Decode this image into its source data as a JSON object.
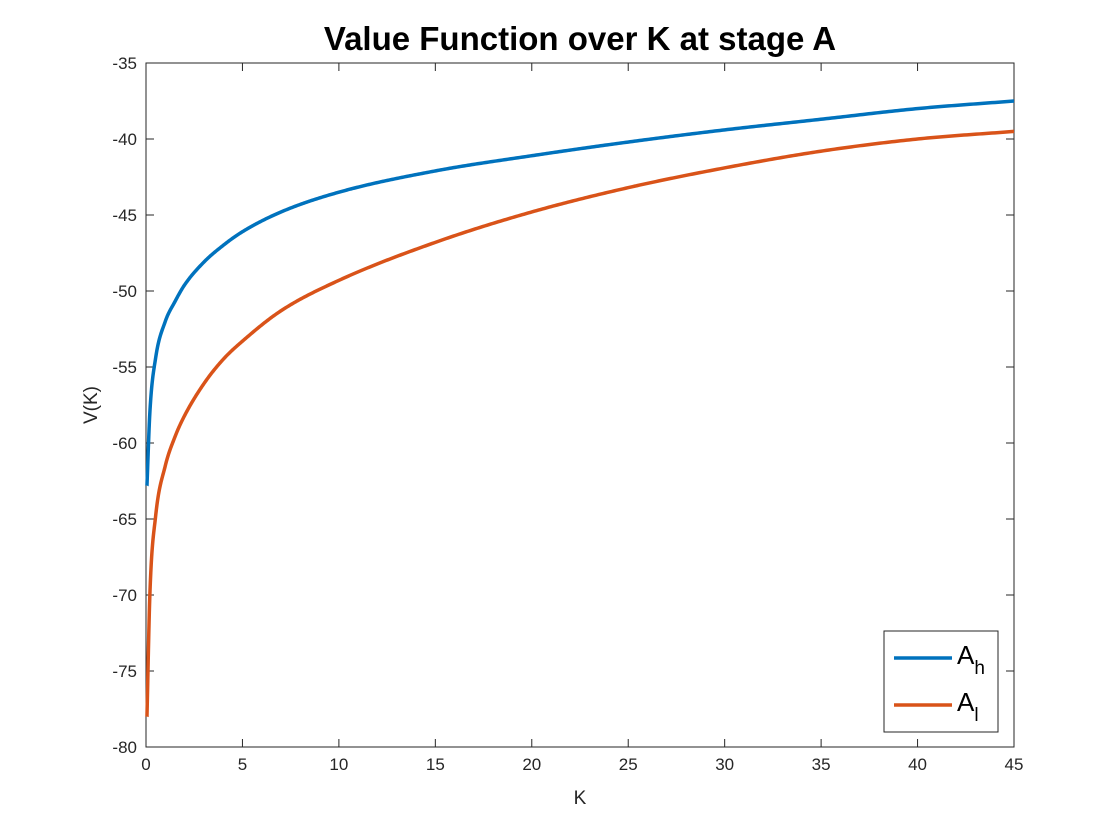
{
  "chart_data": {
    "type": "line",
    "title": "Value Function over K at stage A",
    "xlabel": "K",
    "ylabel": "V(K)",
    "xlim": [
      0,
      45
    ],
    "ylim": [
      -80,
      -35
    ],
    "xticks": [
      0,
      5,
      10,
      15,
      20,
      25,
      30,
      35,
      40,
      45
    ],
    "yticks": [
      -80,
      -75,
      -70,
      -65,
      -60,
      -55,
      -50,
      -45,
      -40,
      -35
    ],
    "grid": false,
    "legend_position": "bottom-right",
    "series": [
      {
        "name": "A_h",
        "label_base": "A",
        "label_sub": "h",
        "color": "#0072BD",
        "x": [
          0.05,
          0.2,
          0.5,
          1,
          1.5,
          2,
          3,
          4,
          5,
          7,
          10,
          15,
          20,
          25,
          30,
          35,
          40,
          45
        ],
        "y": [
          -62.8,
          -58.0,
          -54.4,
          -52.0,
          -50.7,
          -49.6,
          -48.1,
          -47.0,
          -46.1,
          -44.8,
          -43.5,
          -42.1,
          -41.1,
          -40.2,
          -39.4,
          -38.7,
          -38.0,
          -37.5
        ]
      },
      {
        "name": "A_l",
        "label_base": "A",
        "label_sub": "l",
        "color": "#D95319",
        "x": [
          0.05,
          0.2,
          0.5,
          1,
          1.5,
          2,
          3,
          4,
          5,
          7,
          10,
          15,
          20,
          25,
          30,
          35,
          40,
          45
        ],
        "y": [
          -78.0,
          -70.0,
          -64.8,
          -61.5,
          -59.6,
          -58.2,
          -56.1,
          -54.5,
          -53.3,
          -51.3,
          -49.3,
          -46.8,
          -44.8,
          -43.2,
          -41.9,
          -40.8,
          -40.0,
          -39.5
        ]
      }
    ]
  }
}
